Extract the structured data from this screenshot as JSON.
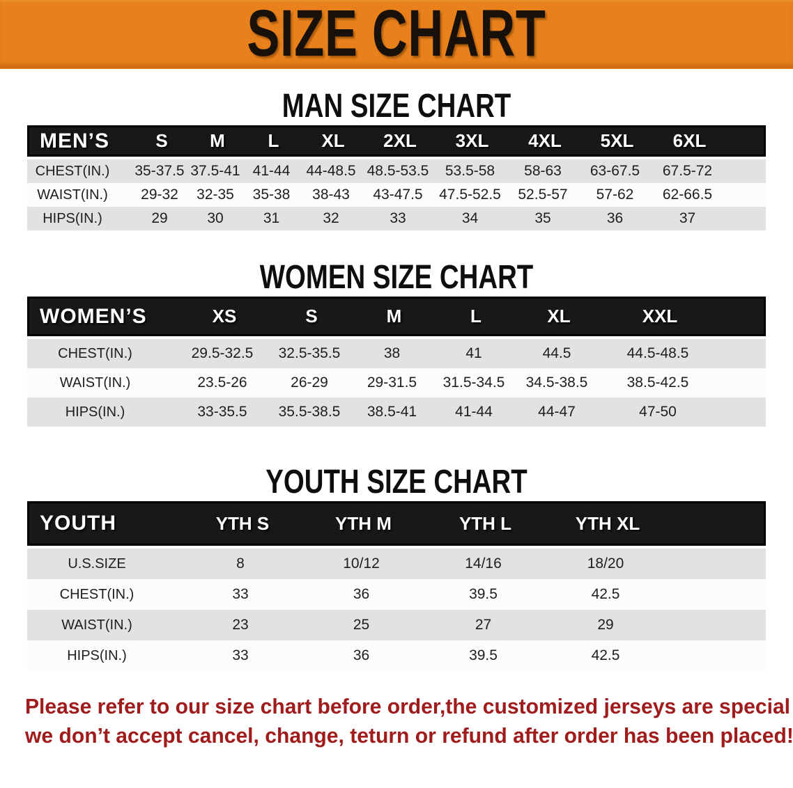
{
  "banner": {
    "title": "SIZE CHART",
    "bg_color": "#e8811c",
    "text_color": "#18100a"
  },
  "sections": [
    {
      "heading": "MAN SIZE CHART",
      "table": {
        "header_label": "MEN’S",
        "columns": [
          "S",
          "M",
          "L",
          "XL",
          "2XL",
          "3XL",
          "4XL",
          "5XL",
          "6XL"
        ],
        "rows": [
          {
            "label": "CHEST(IN.)",
            "values": [
              "35-37.5",
              "37.5-41",
              "41-44",
              "44-48.5",
              "48.5-53.5",
              "53.5-58",
              "58-63",
              "63-67.5",
              "67.5-72"
            ]
          },
          {
            "label": "WAIST(IN.)",
            "values": [
              "29-32",
              "32-35",
              "35-38",
              "38-43",
              "43-47.5",
              "47.5-52.5",
              "52.5-57",
              "57-62",
              "62-66.5"
            ]
          },
          {
            "label": "HIPS(IN.)",
            "values": [
              "29",
              "30",
              "31",
              "32",
              "33",
              "34",
              "35",
              "36",
              "37"
            ]
          }
        ]
      }
    },
    {
      "heading": "WOMEN SIZE CHART",
      "table": {
        "header_label": "WOMEN’S",
        "columns": [
          "XS",
          "S",
          "M",
          "L",
          "XL",
          "XXL"
        ],
        "rows": [
          {
            "label": "CHEST(IN.)",
            "values": [
              "29.5-32.5",
              "32.5-35.5",
              "38",
              "41",
              "44.5",
              "44.5-48.5"
            ]
          },
          {
            "label": "WAIST(IN.)",
            "values": [
              "23.5-26",
              "26-29",
              "29-31.5",
              "31.5-34.5",
              "34.5-38.5",
              "38.5-42.5"
            ]
          },
          {
            "label": "HIPS(IN.)",
            "values": [
              "33-35.5",
              "35.5-38.5",
              "38.5-41",
              "41-44",
              "44-47",
              "47-50"
            ]
          }
        ]
      }
    },
    {
      "heading": "YOUTH SIZE CHART",
      "table": {
        "header_label": "YOUTH",
        "columns": [
          "YTH S",
          "YTH M",
          "YTH L",
          "YTH XL"
        ],
        "rows": [
          {
            "label": "U.S.SIZE",
            "values": [
              "8",
              "10/12",
              "14/16",
              "18/20"
            ]
          },
          {
            "label": "CHEST(IN.)",
            "values": [
              "33",
              "36",
              "39.5",
              "42.5"
            ]
          },
          {
            "label": "WAIST(IN.)",
            "values": [
              "23",
              "25",
              "27",
              "29"
            ]
          },
          {
            "label": "HIPS(IN.)",
            "values": [
              "33",
              "36",
              "39.5",
              "42.5"
            ]
          }
        ]
      }
    }
  ],
  "footer_note": {
    "line1": "Please refer to our size chart before order,the customized jerseys are special products,",
    "line2": "we don’t accept cancel, change, teturn or refund after order has been placed!",
    "color": "#a01c1c"
  }
}
